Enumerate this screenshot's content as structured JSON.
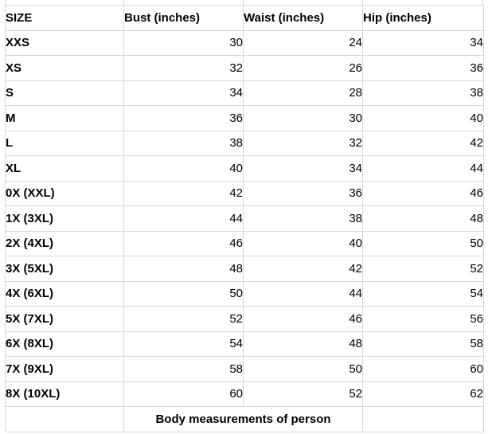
{
  "accent_colors": {
    "gridline": "#d6d6d6",
    "text": "#000000",
    "background": "#ffffff"
  },
  "table": {
    "columns": [
      "SIZE",
      "Bust (inches)",
      "Waist (inches)",
      "Hip (inches)"
    ],
    "rows": [
      {
        "size": "XXS",
        "bust": 30,
        "waist": 24,
        "hip": 34
      },
      {
        "size": "XS",
        "bust": 32,
        "waist": 26,
        "hip": 36
      },
      {
        "size": "S",
        "bust": 34,
        "waist": 28,
        "hip": 38
      },
      {
        "size": "M",
        "bust": 36,
        "waist": 30,
        "hip": 40
      },
      {
        "size": "L",
        "bust": 38,
        "waist": 32,
        "hip": 42
      },
      {
        "size": "XL",
        "bust": 40,
        "waist": 34,
        "hip": 44
      },
      {
        "size": "0X (XXL)",
        "bust": 42,
        "waist": 36,
        "hip": 46
      },
      {
        "size": "1X (3XL)",
        "bust": 44,
        "waist": 38,
        "hip": 48
      },
      {
        "size": "2X (4XL)",
        "bust": 46,
        "waist": 40,
        "hip": 50
      },
      {
        "size": "3X (5XL)",
        "bust": 48,
        "waist": 42,
        "hip": 52
      },
      {
        "size": "4X (6XL)",
        "bust": 50,
        "waist": 44,
        "hip": 54
      },
      {
        "size": "5X (7XL)",
        "bust": 52,
        "waist": 46,
        "hip": 56
      },
      {
        "size": "6X (8XL)",
        "bust": 54,
        "waist": 48,
        "hip": 58
      },
      {
        "size": "7X (9XL)",
        "bust": 58,
        "waist": 50,
        "hip": 60
      },
      {
        "size": "8X (10XL)",
        "bust": 60,
        "waist": 52,
        "hip": 62
      }
    ],
    "footer_note": "Body measurements of person"
  }
}
